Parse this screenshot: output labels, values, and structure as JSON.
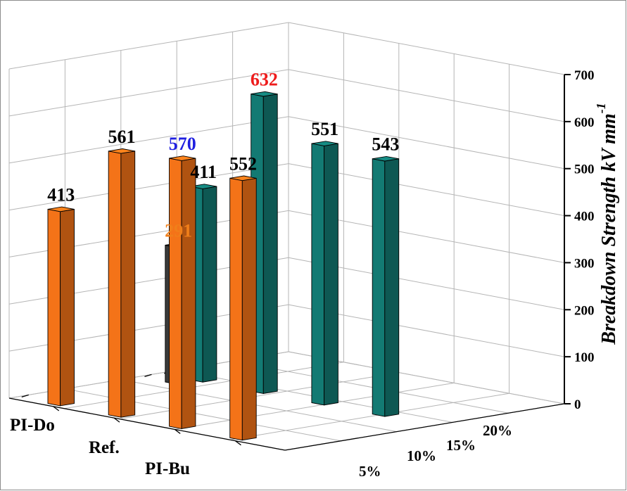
{
  "chart_data": {
    "type": "bar",
    "title": "",
    "ylabel": "Breakdown Strength  kV mm",
    "ylabel_sup": "-1",
    "ylim": [
      0,
      700
    ],
    "yticks": [
      "0",
      "100",
      "200",
      "300",
      "400",
      "500",
      "600",
      "700"
    ],
    "x_categories": [
      "5%",
      "10%",
      "15%",
      "20%"
    ],
    "series_rows": [
      "PI-Do",
      "Ref.",
      "PI-Bu"
    ],
    "grid": true,
    "bars": [
      {
        "series": "PI-Do",
        "x": "5%",
        "value": 411,
        "label": "411",
        "label_color": "#000000",
        "color": "#137a73"
      },
      {
        "series": "PI-Do",
        "x": "10%",
        "value": 632,
        "label": "632",
        "label_color": "#ee1c1c",
        "color": "#137a73"
      },
      {
        "series": "PI-Do",
        "x": "15%",
        "value": 551,
        "label": "551",
        "label_color": "#000000",
        "color": "#137a73"
      },
      {
        "series": "PI-Do",
        "x": "20%",
        "value": 543,
        "label": "543",
        "label_color": "#000000",
        "color": "#137a73"
      },
      {
        "series": "Ref.",
        "x": "",
        "value": 291,
        "label": "291",
        "label_color": "#f07f1a",
        "color": "#3a3a3a"
      },
      {
        "series": "PI-Bu",
        "x": "5%",
        "value": 413,
        "label": "413",
        "label_color": "#000000",
        "color": "#f47318"
      },
      {
        "series": "PI-Bu",
        "x": "10%",
        "value": 561,
        "label": "561",
        "label_color": "#000000",
        "color": "#f47318"
      },
      {
        "series": "PI-Bu",
        "x": "15%",
        "value": 570,
        "label": "570",
        "label_color": "#1f1fe0",
        "color": "#f47318"
      },
      {
        "series": "PI-Bu",
        "x": "20%",
        "value": 552,
        "label": "552",
        "label_color": "#000000",
        "color": "#f47318"
      }
    ]
  }
}
